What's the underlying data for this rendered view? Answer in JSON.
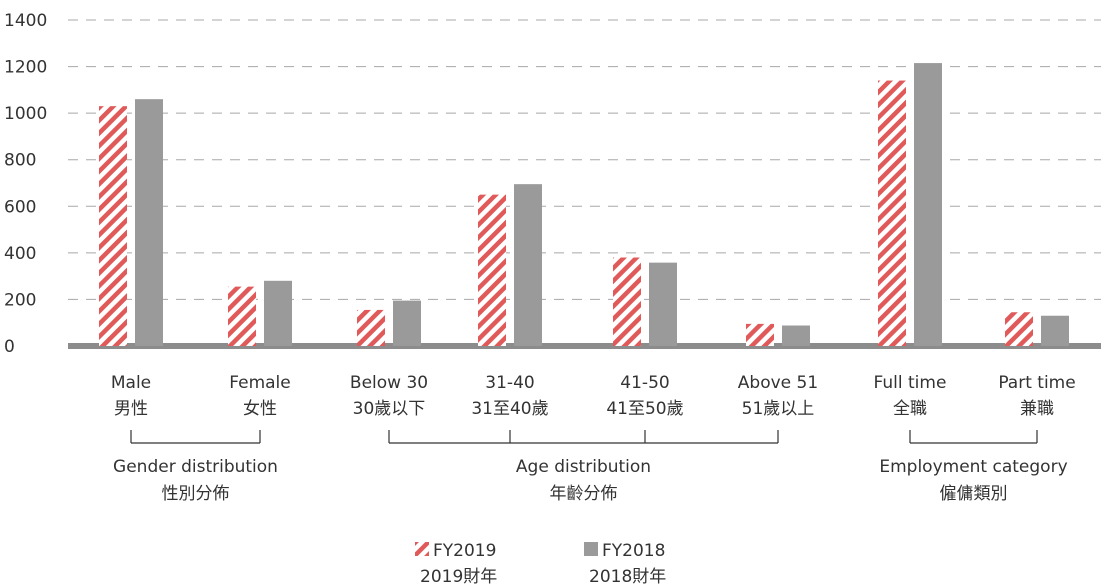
{
  "chart_data": {
    "type": "bar",
    "title": "",
    "xlabel": "",
    "ylabel": "",
    "ylim": [
      0,
      1400
    ],
    "yticks": [
      0,
      200,
      400,
      600,
      800,
      1000,
      1200,
      1400
    ],
    "grid": true,
    "categories": [
      {
        "en": "Male",
        "zh": "男性"
      },
      {
        "en": "Female",
        "zh": "女性"
      },
      {
        "en": "Below 30",
        "zh": "30歲以下"
      },
      {
        "en": "31-40",
        "zh": "31至40歲"
      },
      {
        "en": "41-50",
        "zh": "41至50歲"
      },
      {
        "en": "Above 51",
        "zh": "51歲以上"
      },
      {
        "en": "Full time",
        "zh": "全職"
      },
      {
        "en": "Part time",
        "zh": "兼職"
      }
    ],
    "groups": [
      {
        "en": "Gender distribution",
        "zh": "性別分佈",
        "members": [
          0,
          1
        ]
      },
      {
        "en": "Age distribution",
        "zh": "年齡分佈",
        "members": [
          2,
          3,
          4,
          5
        ]
      },
      {
        "en": "Employment category",
        "zh": "僱傭類別",
        "members": [
          6,
          7
        ]
      }
    ],
    "series": [
      {
        "name": "FY2019",
        "name_zh": "2019財年",
        "color": "#e05a5a",
        "pattern": "hatch",
        "values": [
          1030,
          255,
          155,
          650,
          380,
          95,
          1140,
          145
        ]
      },
      {
        "name": "FY2018",
        "name_zh": "2018財年",
        "color": "#9a9a9a",
        "pattern": "solid",
        "values": [
          1060,
          280,
          195,
          695,
          358,
          88,
          1215,
          130
        ]
      }
    ],
    "legend": "bottom-center"
  }
}
